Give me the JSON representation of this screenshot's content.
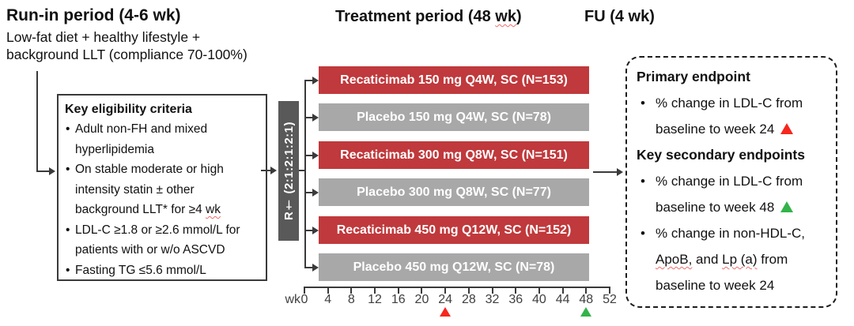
{
  "title_area": {
    "run_in_title": "Run-in period (4-6 wk)",
    "run_in_desc": "Low-fat diet + healthy lifestyle +\nbackground LLT (compliance 70-100%)",
    "treatment_title_segments": [
      {
        "t": "Treatment period (48 "
      },
      {
        "t": "wk",
        "sq": true
      },
      {
        "t": ")"
      }
    ],
    "fu_title": "FU (4 wk)"
  },
  "eligibility_box": {
    "title": "Key eligibility criteria",
    "items": [
      [
        {
          "t": "Adult non-FH and mixed\nhyperlipidemia"
        }
      ],
      [
        {
          "t": "On stable moderate or high\nintensity statin ± other\nbackground LLT* for ≥4 "
        },
        {
          "t": "wk",
          "sq": true
        }
      ],
      [
        {
          "t": "LDL-C ≥1.8 or ≥2.6 mmol/L for\npatients with or w/o ASCVD"
        }
      ],
      [
        {
          "t": "Fasting TG ≤5.6 mmol/L"
        }
      ]
    ]
  },
  "randomization": {
    "label": "R† (2:1:2:1:2:1)"
  },
  "arms": [
    {
      "label": "Recaticimab 150 mg Q4W, SC (N=153)",
      "type": "drug"
    },
    {
      "label": "Placebo 150 mg Q4W, SC (N=78)",
      "type": "placebo"
    },
    {
      "label": "Recaticimab 300 mg Q8W, SC (N=151)",
      "type": "drug"
    },
    {
      "label": "Placebo 300 mg Q8W, SC (N=77)",
      "type": "placebo"
    },
    {
      "label": "Recaticimab 450 mg Q12W, SC (N=152)",
      "type": "drug"
    },
    {
      "label": "Placebo 450 mg Q12W, SC (N=78)",
      "type": "placebo"
    }
  ],
  "timeline": {
    "unit_label": "wk",
    "tick_labels": [
      "0",
      "4",
      "8",
      "12",
      "16",
      "20",
      "24",
      "28",
      "32",
      "36",
      "40",
      "44",
      "48",
      "52"
    ],
    "markers": [
      {
        "week": 24,
        "color": "red"
      },
      {
        "week": 48,
        "color": "green"
      }
    ]
  },
  "endpoints_box": {
    "primary_title": "Primary endpoint",
    "primary_items": [
      [
        {
          "t": "% change in LDL-C from\nbaseline to week 24 "
        },
        {
          "icon": "red-triangle"
        }
      ]
    ],
    "secondary_title": "Key secondary endpoints",
    "secondary_items": [
      [
        {
          "t": "% change in LDL-C from\nbaseline to week 48 "
        },
        {
          "icon": "green-triangle"
        }
      ],
      [
        {
          "t": "% change in non-HDL-C,\n"
        },
        {
          "t": "ApoB,",
          "sq": true
        },
        {
          "t": " and "
        },
        {
          "t": "Lp (a)",
          "sq": true
        },
        {
          "t": " from\nbaseline to week 24"
        }
      ]
    ]
  },
  "colors": {
    "drug_bar": "#c0393c",
    "placebo_bar": "#a8a8a8",
    "randomization_bar": "#595959",
    "marker_red": "#f5271f",
    "marker_green": "#33b34a"
  }
}
